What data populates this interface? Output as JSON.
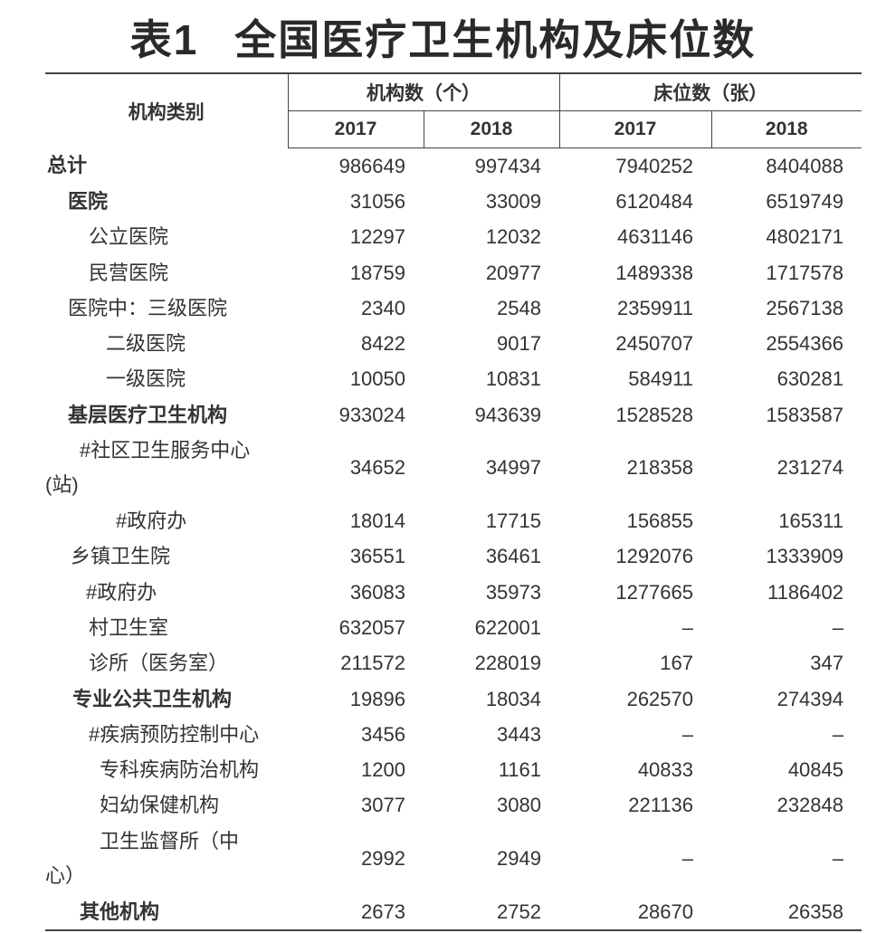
{
  "title": {
    "table_no": "表1",
    "text": "全国医疗卫生机构及床位数"
  },
  "header": {
    "category": "机构类别",
    "group1": "机构数（个）",
    "group2": "床位数（张）",
    "years": [
      "2017",
      "2018",
      "2017",
      "2018"
    ]
  },
  "rows": [
    {
      "label": "总计",
      "values": [
        "986649",
        "997434",
        "7940252",
        "8404088"
      ]
    },
    {
      "label": "医院",
      "values": [
        "31056",
        "33009",
        "6120484",
        "6519749"
      ]
    },
    {
      "label": "公立医院",
      "values": [
        "12297",
        "12032",
        "4631146",
        "4802171"
      ]
    },
    {
      "label": "民营医院",
      "values": [
        "18759",
        "20977",
        "1489338",
        "1717578"
      ]
    },
    {
      "label": "医院中：三级医院",
      "values": [
        "2340",
        "2548",
        "2359911",
        "2567138"
      ]
    },
    {
      "label": "二级医院",
      "values": [
        "8422",
        "9017",
        "2450707",
        "2554366"
      ]
    },
    {
      "label": "一级医院",
      "values": [
        "10050",
        "10831",
        "584911",
        "630281"
      ]
    },
    {
      "label": "基层医疗卫生机构",
      "values": [
        "933024",
        "943639",
        "1528528",
        "1583587"
      ]
    },
    {
      "label": "#社区卫生服务中心(站)",
      "values": [
        "34652",
        "34997",
        "218358",
        "231274"
      ]
    },
    {
      "label": "#政府办",
      "values": [
        "18014",
        "17715",
        "156855",
        "165311"
      ]
    },
    {
      "label": "乡镇卫生院",
      "values": [
        "36551",
        "36461",
        "1292076",
        "1333909"
      ]
    },
    {
      "label": "#政府办",
      "values": [
        "36083",
        "35973",
        "1277665",
        "1186402"
      ]
    },
    {
      "label": "村卫生室",
      "values": [
        "632057",
        "622001",
        "–",
        "–"
      ]
    },
    {
      "label": "诊所（医务室）",
      "values": [
        "211572",
        "228019",
        "167",
        "347"
      ]
    },
    {
      "label": "专业公共卫生机构",
      "values": [
        "19896",
        "18034",
        "262570",
        "274394"
      ]
    },
    {
      "label": "#疾病预防控制中心",
      "values": [
        "3456",
        "3443",
        "–",
        "–"
      ]
    },
    {
      "label": "专科疾病防治机构",
      "values": [
        "1200",
        "1161",
        "40833",
        "40845"
      ]
    },
    {
      "label": "妇幼保健机构",
      "values": [
        "3077",
        "3080",
        "221136",
        "232848"
      ]
    },
    {
      "label": "卫生监督所（中心）",
      "values": [
        "2992",
        "2949",
        "–",
        "–"
      ]
    },
    {
      "label": "其他机构",
      "values": [
        "2673",
        "2752",
        "28670",
        "26358"
      ]
    }
  ]
}
